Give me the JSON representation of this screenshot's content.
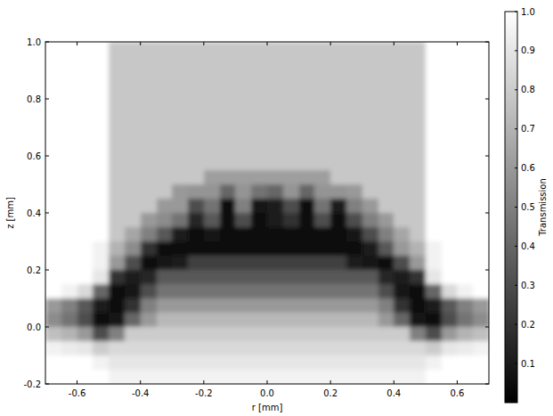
{
  "chart_data": {
    "type": "heatmap",
    "x_label": "r [mm]",
    "y_label": "z [mm]",
    "xlim": [
      -0.7,
      0.7
    ],
    "ylim": [
      -0.2,
      1.0
    ],
    "xticks": [
      -0.6,
      -0.4,
      -0.2,
      {
        "value": 0,
        "label": "0.0"
      },
      0.2,
      0.4,
      0.6
    ],
    "yticks": [
      -0.2,
      {
        "value": 0,
        "label": "0.0"
      },
      0.2,
      0.4,
      0.6,
      0.8,
      {
        "value": 1,
        "label": "1.0"
      }
    ],
    "cells": [
      [
        1,
        1,
        1,
        1,
        0.78,
        0.78,
        0.78,
        0.78,
        0.78,
        0.78,
        0.78,
        0.78,
        0.78,
        0.78,
        0.78,
        0.78,
        0.78,
        0.78,
        0.78,
        0.78,
        0.78,
        0.78,
        0.78,
        0.78,
        1,
        1,
        1,
        1
      ],
      [
        1,
        1,
        1,
        1,
        0.78,
        0.78,
        0.78,
        0.78,
        0.78,
        0.78,
        0.78,
        0.78,
        0.78,
        0.78,
        0.78,
        0.78,
        0.78,
        0.78,
        0.78,
        0.78,
        0.78,
        0.78,
        0.78,
        0.78,
        1,
        1,
        1,
        1
      ],
      [
        1,
        1,
        1,
        1,
        0.78,
        0.78,
        0.78,
        0.78,
        0.78,
        0.78,
        0.78,
        0.78,
        0.78,
        0.78,
        0.78,
        0.78,
        0.78,
        0.78,
        0.78,
        0.78,
        0.78,
        0.78,
        0.78,
        0.78,
        1,
        1,
        1,
        1
      ],
      [
        1,
        1,
        1,
        1,
        0.78,
        0.78,
        0.78,
        0.78,
        0.78,
        0.78,
        0.78,
        0.78,
        0.78,
        0.78,
        0.78,
        0.78,
        0.78,
        0.78,
        0.78,
        0.78,
        0.78,
        0.78,
        0.78,
        0.78,
        1,
        1,
        1,
        1
      ],
      [
        1,
        1,
        1,
        1,
        0.78,
        0.78,
        0.78,
        0.78,
        0.78,
        0.78,
        0.78,
        0.78,
        0.78,
        0.78,
        0.78,
        0.78,
        0.78,
        0.78,
        0.78,
        0.78,
        0.78,
        0.78,
        0.78,
        0.78,
        1,
        1,
        1,
        1
      ],
      [
        1,
        1,
        1,
        1,
        0.78,
        0.78,
        0.78,
        0.78,
        0.78,
        0.78,
        0.78,
        0.78,
        0.78,
        0.78,
        0.78,
        0.78,
        0.78,
        0.78,
        0.78,
        0.78,
        0.78,
        0.78,
        0.78,
        0.78,
        1,
        1,
        1,
        1
      ],
      [
        1,
        1,
        1,
        1,
        0.78,
        0.78,
        0.78,
        0.78,
        0.78,
        0.78,
        0.78,
        0.78,
        0.78,
        0.78,
        0.78,
        0.78,
        0.78,
        0.78,
        0.78,
        0.78,
        0.78,
        0.78,
        0.78,
        0.78,
        1,
        1,
        1,
        1
      ],
      [
        1,
        1,
        1,
        1,
        0.78,
        0.78,
        0.78,
        0.78,
        0.78,
        0.78,
        0.78,
        0.78,
        0.78,
        0.78,
        0.78,
        0.78,
        0.78,
        0.78,
        0.78,
        0.78,
        0.78,
        0.78,
        0.78,
        0.78,
        1,
        1,
        1,
        1
      ],
      [
        1,
        1,
        1,
        1,
        0.78,
        0.78,
        0.78,
        0.78,
        0.78,
        0.78,
        0.78,
        0.78,
        0.78,
        0.78,
        0.78,
        0.78,
        0.78,
        0.78,
        0.78,
        0.78,
        0.78,
        0.78,
        0.78,
        0.78,
        1,
        1,
        1,
        1
      ],
      [
        1,
        1,
        1,
        1,
        0.78,
        0.78,
        0.78,
        0.78,
        0.78,
        0.78,
        0.62,
        0.62,
        0.62,
        0.62,
        0.62,
        0.62,
        0.62,
        0.62,
        0.78,
        0.78,
        0.78,
        0.78,
        0.78,
        0.78,
        1,
        1,
        1,
        1
      ],
      [
        1,
        1,
        1,
        1,
        0.78,
        0.78,
        0.78,
        0.78,
        0.6,
        0.58,
        0.58,
        0.4,
        0.58,
        0.45,
        0.4,
        0.58,
        0.4,
        0.58,
        0.58,
        0.6,
        0.78,
        0.78,
        0.78,
        0.78,
        1,
        1,
        1,
        1
      ],
      [
        1,
        1,
        1,
        1,
        0.78,
        0.78,
        0.78,
        0.6,
        0.6,
        0.3,
        0.45,
        0.05,
        0.5,
        0.08,
        0.1,
        0.3,
        0.05,
        0.45,
        0.1,
        0.5,
        0.6,
        0.78,
        0.78,
        0.78,
        1,
        1,
        1,
        1
      ],
      [
        1,
        1,
        1,
        1,
        0.78,
        0.78,
        0.6,
        0.55,
        0.45,
        0.15,
        0.35,
        0.05,
        0.3,
        0.05,
        0.1,
        0.2,
        0.05,
        0.3,
        0.05,
        0.3,
        0.5,
        0.6,
        0.78,
        0.78,
        1,
        1,
        1,
        1
      ],
      [
        1,
        1,
        1,
        1,
        0.78,
        0.65,
        0.5,
        0.35,
        0.1,
        0.05,
        0.08,
        0.05,
        0.05,
        0.05,
        0.05,
        0.05,
        0.05,
        0.05,
        0.05,
        0.08,
        0.3,
        0.5,
        0.65,
        0.78,
        1,
        1,
        1,
        1
      ],
      [
        1,
        1,
        1,
        0.95,
        0.7,
        0.55,
        0.2,
        0.05,
        0.03,
        0.03,
        0.03,
        0.03,
        0.03,
        0.03,
        0.03,
        0.03,
        0.03,
        0.03,
        0.03,
        0.03,
        0.1,
        0.35,
        0.6,
        0.7,
        0.95,
        1,
        1,
        1
      ],
      [
        1,
        1,
        1,
        0.95,
        0.6,
        0.3,
        0.05,
        0.08,
        0.12,
        0.25,
        0.25,
        0.25,
        0.25,
        0.25,
        0.25,
        0.25,
        0.25,
        0.25,
        0.25,
        0.12,
        0.08,
        0.05,
        0.3,
        0.6,
        0.95,
        1,
        1,
        1
      ],
      [
        1,
        1,
        1,
        0.9,
        0.2,
        0.1,
        0.15,
        0.35,
        0.35,
        0.35,
        0.35,
        0.35,
        0.35,
        0.35,
        0.35,
        0.35,
        0.35,
        0.35,
        0.35,
        0.35,
        0.35,
        0.15,
        0.1,
        0.2,
        0.9,
        1,
        1,
        1
      ],
      [
        1,
        0.95,
        0.85,
        0.4,
        0.05,
        0.08,
        0.3,
        0.45,
        0.45,
        0.45,
        0.45,
        0.45,
        0.45,
        0.45,
        0.45,
        0.45,
        0.45,
        0.45,
        0.45,
        0.45,
        0.45,
        0.3,
        0.08,
        0.05,
        0.4,
        0.85,
        0.95,
        1
      ],
      [
        0.6,
        0.5,
        0.35,
        0.1,
        0.03,
        0.2,
        0.5,
        0.6,
        0.6,
        0.6,
        0.6,
        0.6,
        0.6,
        0.6,
        0.6,
        0.6,
        0.6,
        0.6,
        0.6,
        0.6,
        0.6,
        0.5,
        0.2,
        0.03,
        0.1,
        0.35,
        0.5,
        0.6
      ],
      [
        0.55,
        0.45,
        0.3,
        0.05,
        0.08,
        0.4,
        0.6,
        0.72,
        0.72,
        0.72,
        0.72,
        0.72,
        0.72,
        0.72,
        0.72,
        0.72,
        0.72,
        0.72,
        0.72,
        0.72,
        0.72,
        0.6,
        0.4,
        0.08,
        0.05,
        0.3,
        0.45,
        0.55
      ],
      [
        0.75,
        0.7,
        0.6,
        0.3,
        0.5,
        0.8,
        0.8,
        0.8,
        0.8,
        0.8,
        0.8,
        0.8,
        0.8,
        0.8,
        0.8,
        0.8,
        0.8,
        0.8,
        0.8,
        0.8,
        0.8,
        0.8,
        0.8,
        0.5,
        0.3,
        0.6,
        0.7,
        0.75
      ],
      [
        0.95,
        0.92,
        0.9,
        0.8,
        0.85,
        0.85,
        0.85,
        0.85,
        0.85,
        0.85,
        0.85,
        0.85,
        0.85,
        0.85,
        0.85,
        0.85,
        0.85,
        0.85,
        0.85,
        0.85,
        0.85,
        0.85,
        0.85,
        0.85,
        0.8,
        0.9,
        0.92,
        0.95
      ],
      [
        1,
        1,
        1,
        0.95,
        0.9,
        0.9,
        0.9,
        0.9,
        0.9,
        0.9,
        0.9,
        0.9,
        0.9,
        0.9,
        0.9,
        0.9,
        0.9,
        0.9,
        0.9,
        0.9,
        0.9,
        0.9,
        0.9,
        0.9,
        0.95,
        1,
        1,
        1
      ],
      [
        1,
        1,
        1,
        1,
        0.95,
        0.95,
        0.95,
        0.95,
        0.95,
        0.95,
        0.95,
        0.95,
        0.95,
        0.95,
        0.95,
        0.95,
        0.95,
        0.95,
        0.95,
        0.95,
        0.95,
        0.95,
        0.95,
        0.95,
        1,
        1,
        1,
        1
      ]
    ],
    "colorbar": {
      "label": "Transmission",
      "range": [
        0,
        1
      ],
      "ticks": [
        0.1,
        0.2,
        0.3,
        0.4,
        0.5,
        0.6,
        0.7,
        0.8,
        0.9,
        {
          "value": 1,
          "label": "1.0"
        }
      ]
    }
  }
}
